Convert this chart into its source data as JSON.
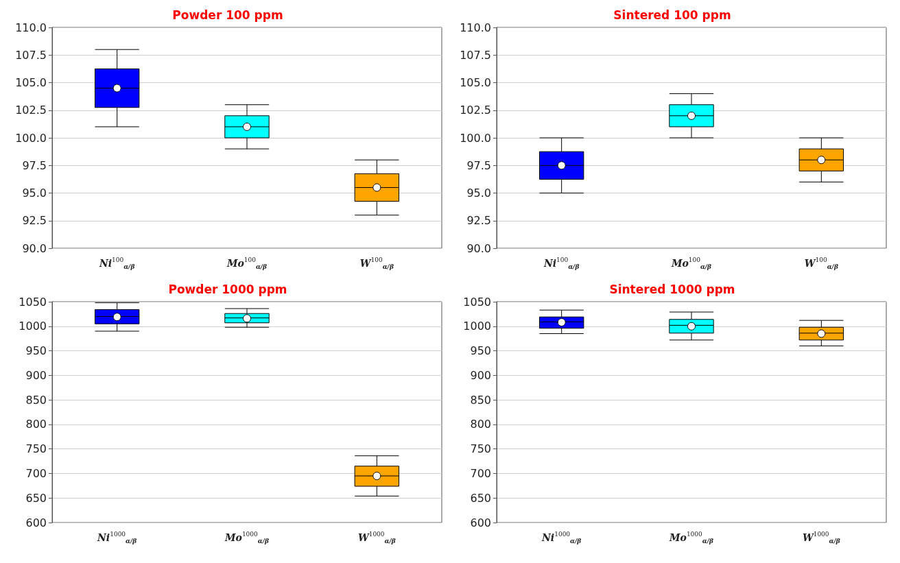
{
  "chart_data": [
    {
      "type": "box",
      "title": "Powder 100 ppm",
      "categories": [
        "Ni$^{100}$$_{α/β}$",
        "Mo$^{100}$$_{α/β}$",
        "W$^{100}$$_{α/β}$"
      ],
      "colors": [
        "#0000ff",
        "#00ffff",
        "#ffa500"
      ],
      "boxes": [
        {
          "low": 101,
          "q1": 102.75,
          "median": 104.5,
          "q3": 106.25,
          "high": 108,
          "mean": 104.5
        },
        {
          "low": 99,
          "q1": 100,
          "median": 101,
          "q3": 102,
          "high": 103,
          "mean": 101
        },
        {
          "low": 93,
          "q1": 94.25,
          "median": 95.5,
          "q3": 96.75,
          "high": 98,
          "mean": 95.5
        }
      ],
      "ylim": [
        90,
        110
      ],
      "yticks": [
        {
          "value": 90,
          "label": "90.0"
        },
        {
          "value": 92.5,
          "label": "92.5"
        },
        {
          "value": 95,
          "label": "95.0"
        },
        {
          "value": 97.5,
          "label": "97.5"
        },
        {
          "value": 100,
          "label": "100.0"
        },
        {
          "value": 102.5,
          "label": "102.5"
        },
        {
          "value": 105,
          "label": "105.0"
        },
        {
          "value": 107.5,
          "label": "107.5"
        },
        {
          "value": 110,
          "label": "110.0"
        }
      ],
      "grid": "y"
    },
    {
      "type": "box",
      "title": "Sintered 100 ppm",
      "categories": [
        "Ni$^{100}$$_{α/β}$",
        "Mo$^{100}$$_{α/β}$",
        "W$^{100}$$_{α/β}$"
      ],
      "colors": [
        "#0000ff",
        "#00ffff",
        "#ffa500"
      ],
      "boxes": [
        {
          "low": 95,
          "q1": 96.25,
          "median": 97.5,
          "q3": 98.75,
          "high": 100,
          "mean": 97.5
        },
        {
          "low": 100,
          "q1": 101,
          "median": 102,
          "q3": 103,
          "high": 104,
          "mean": 102
        },
        {
          "low": 96,
          "q1": 97,
          "median": 98,
          "q3": 99,
          "high": 100,
          "mean": 98
        }
      ],
      "ylim": [
        90,
        110
      ],
      "yticks": [
        {
          "value": 90,
          "label": "90.0"
        },
        {
          "value": 92.5,
          "label": "92.5"
        },
        {
          "value": 95,
          "label": "95.0"
        },
        {
          "value": 97.5,
          "label": "97.5"
        },
        {
          "value": 100,
          "label": "100.0"
        },
        {
          "value": 102.5,
          "label": "102.5"
        },
        {
          "value": 105,
          "label": "105.0"
        },
        {
          "value": 107.5,
          "label": "107.5"
        },
        {
          "value": 110,
          "label": "110.0"
        }
      ],
      "grid": "y"
    },
    {
      "type": "box",
      "title": "Powder 1000 ppm",
      "categories": [
        "Ni$^{1000}$$_{α/β}$",
        "Mo$^{1000}$$_{α/β}$",
        "W$^{1000}$$_{α/β}$"
      ],
      "colors": [
        "#0000ff",
        "#00ffff",
        "#ffa500"
      ],
      "boxes": [
        {
          "low": 990,
          "q1": 1005,
          "median": 1020,
          "q3": 1034,
          "high": 1048,
          "mean": 1019
        },
        {
          "low": 998,
          "q1": 1007,
          "median": 1017,
          "q3": 1026,
          "high": 1036,
          "mean": 1016
        },
        {
          "low": 654,
          "q1": 674,
          "median": 695,
          "q3": 715,
          "high": 736,
          "mean": 695
        }
      ],
      "ylim": [
        600,
        1050
      ],
      "yticks": [
        600,
        650,
        700,
        750,
        800,
        850,
        900,
        950,
        1000,
        1050
      ],
      "grid": "y"
    },
    {
      "type": "box",
      "title": "Sintered 1000 ppm",
      "categories": [
        "Ni$^{1000}$$_{α/β}$",
        "Mo$^{1000}$$_{α/β}$",
        "W$^{1000}$$_{α/β}$"
      ],
      "colors": [
        "#0000ff",
        "#00ffff",
        "#ffa500"
      ],
      "boxes": [
        {
          "low": 985,
          "q1": 996,
          "median": 1009,
          "q3": 1019,
          "high": 1033,
          "mean": 1008
        },
        {
          "low": 972,
          "q1": 986,
          "median": 1002,
          "q3": 1014,
          "high": 1029,
          "mean": 1000
        },
        {
          "low": 960,
          "q1": 972,
          "median": 986,
          "q3": 998,
          "high": 1012,
          "mean": 985
        }
      ],
      "ylim": [
        600,
        1050
      ],
      "yticks": [
        600,
        650,
        700,
        750,
        800,
        850,
        900,
        950,
        1000,
        1050
      ],
      "grid": "y"
    }
  ]
}
